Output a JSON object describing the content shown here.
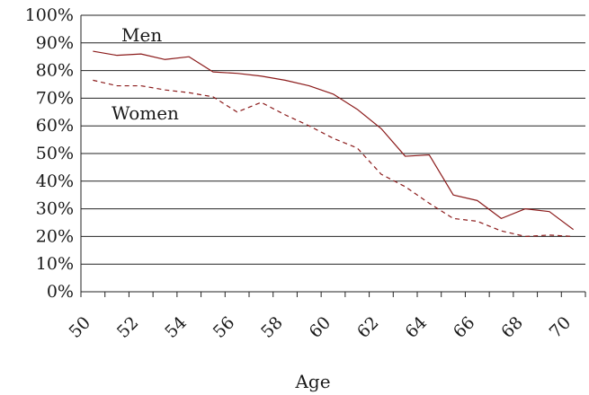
{
  "chart_data": {
    "type": "line",
    "title": "",
    "xlabel": "Age",
    "ylabel": "",
    "xlim": [
      50,
      71
    ],
    "ylim": [
      0,
      100
    ],
    "grid": true,
    "x_tick_labels": [
      "50",
      "52",
      "54",
      "56",
      "58",
      "60",
      "62",
      "64",
      "66",
      "68",
      "70"
    ],
    "y_tick_labels": [
      "0%",
      "10%",
      "20%",
      "30%",
      "40%",
      "50%",
      "60%",
      "70%",
      "80%",
      "90%",
      "100%"
    ],
    "x": [
      50,
      51,
      52,
      53,
      54,
      55,
      56,
      57,
      58,
      59,
      60,
      61,
      62,
      63,
      64,
      65,
      66,
      67,
      68,
      69,
      70
    ],
    "series": [
      {
        "name": "Men",
        "style": "solid",
        "color": "#8b1a1a",
        "values": [
          87,
          85.5,
          86,
          84,
          85,
          79.5,
          79,
          78,
          76.5,
          74.5,
          71.5,
          66,
          59,
          49,
          49.5,
          35,
          33,
          26.5,
          30,
          29,
          22.5
        ]
      },
      {
        "name": "Women",
        "style": "dashed",
        "color": "#8b1a1a",
        "values": [
          76.5,
          74.5,
          74.5,
          73,
          72,
          70.5,
          65,
          68.5,
          64,
          60,
          55.5,
          52,
          42.5,
          38,
          32,
          26.5,
          25.5,
          22,
          20,
          20.5,
          20
        ]
      }
    ]
  }
}
